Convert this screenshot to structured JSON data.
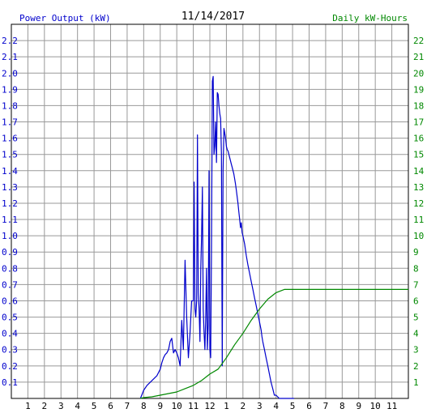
{
  "chart_data": {
    "type": "line",
    "title": "11/14/2017",
    "left_axis_label": "Power Output (kW)",
    "right_axis_label": "Daily kW-Hours",
    "x_ticks": [
      "1",
      "2",
      "3",
      "4",
      "5",
      "6",
      "7",
      "8",
      "9",
      "10",
      "11",
      "12",
      "1",
      "2",
      "3",
      "4",
      "5",
      "6",
      "7",
      "8",
      "9",
      "10",
      "11"
    ],
    "left_ticks": [
      "0.1",
      "0.2",
      "0.3",
      "0.4",
      "0.5",
      "0.6",
      "0.7",
      "0.8",
      "0.9",
      "1.0",
      "1.1",
      "1.2",
      "1.3",
      "1.4",
      "1.5",
      "1.6",
      "1.7",
      "1.8",
      "1.9",
      "2.0",
      "2.1",
      "2.2"
    ],
    "right_ticks": [
      "1",
      "2",
      "3",
      "4",
      "5",
      "6",
      "7",
      "8",
      "9",
      "10",
      "11",
      "12",
      "13",
      "14",
      "15",
      "16",
      "17",
      "18",
      "19",
      "20",
      "21",
      "22"
    ],
    "ylim_left": [
      0,
      2.3
    ],
    "ylim_right": [
      0,
      23
    ],
    "xlim_hours": [
      0,
      24
    ],
    "grid": true,
    "colors": {
      "power": "#0000cc",
      "energy": "#008800",
      "left_axis": "#0000cc",
      "right_axis": "#008800",
      "grid": "#999999",
      "title": "#000000"
    },
    "series": [
      {
        "name": "Power Output (kW)",
        "axis": "left",
        "x": [
          7.8,
          8.0,
          8.2,
          8.4,
          8.6,
          8.8,
          9.0,
          9.1,
          9.2,
          9.3,
          9.4,
          9.5,
          9.6,
          9.7,
          9.8,
          9.9,
          10.0,
          10.1,
          10.2,
          10.3,
          10.4,
          10.5,
          10.6,
          10.7,
          10.8,
          10.9,
          11.0,
          11.05,
          11.1,
          11.15,
          11.2,
          11.25,
          11.3,
          11.35,
          11.4,
          11.45,
          11.5,
          11.55,
          11.6,
          11.65,
          11.7,
          11.75,
          11.8,
          11.85,
          11.9,
          11.95,
          12.0,
          12.05,
          12.1,
          12.15,
          12.2,
          12.25,
          12.3,
          12.35,
          12.4,
          12.45,
          12.5,
          12.55,
          12.6,
          12.65,
          12.7,
          12.75,
          12.8,
          12.85,
          12.9,
          12.95,
          13.0,
          13.05,
          13.1,
          13.15,
          13.2,
          13.25,
          13.3,
          13.35,
          13.4,
          13.45,
          13.5,
          13.55,
          13.6,
          13.65,
          13.7,
          13.75,
          13.8,
          13.85,
          13.9,
          13.95,
          14.0,
          14.1,
          14.2,
          14.3,
          14.4,
          14.5,
          14.6,
          14.7,
          14.8,
          14.9,
          15.0,
          15.1,
          15.15,
          15.2,
          15.3,
          15.4,
          15.5,
          15.6,
          15.7,
          15.8,
          15.9,
          16.0,
          16.1,
          16.2,
          16.3,
          16.4,
          16.5,
          16.6,
          16.7,
          16.8,
          16.9,
          17.0,
          17.1
        ],
        "y": [
          0.0,
          0.05,
          0.08,
          0.1,
          0.12,
          0.14,
          0.18,
          0.22,
          0.25,
          0.27,
          0.28,
          0.3,
          0.35,
          0.37,
          0.28,
          0.3,
          0.28,
          0.25,
          0.2,
          0.48,
          0.3,
          0.85,
          0.5,
          0.25,
          0.4,
          0.6,
          0.6,
          1.33,
          0.55,
          0.5,
          0.6,
          1.62,
          0.65,
          0.55,
          0.35,
          0.8,
          1.0,
          1.3,
          0.55,
          0.4,
          0.3,
          0.5,
          0.8,
          0.3,
          0.45,
          1.4,
          0.3,
          0.25,
          0.9,
          1.95,
          1.98,
          1.5,
          1.55,
          1.7,
          1.45,
          1.88,
          1.87,
          1.8,
          1.75,
          1.72,
          1.5,
          0.2,
          1.4,
          1.66,
          1.63,
          1.6,
          1.55,
          1.53,
          1.52,
          1.5,
          1.48,
          1.46,
          1.44,
          1.42,
          1.4,
          1.38,
          1.35,
          1.32,
          1.28,
          1.24,
          1.2,
          1.15,
          1.1,
          1.05,
          1.08,
          1.02,
          1.0,
          0.95,
          0.88,
          0.82,
          0.77,
          0.72,
          0.67,
          0.62,
          0.57,
          0.52,
          0.47,
          0.42,
          0.38,
          0.35,
          0.3,
          0.25,
          0.2,
          0.15,
          0.1,
          0.06,
          0.02,
          0.02,
          0.01,
          0.0,
          0.0,
          0.0,
          0.0,
          0.0,
          0.0,
          0.0,
          0.0,
          0.0,
          0.0
        ]
      },
      {
        "name": "Daily kW-Hours",
        "axis": "right",
        "x": [
          7.8,
          8.0,
          8.5,
          9.0,
          9.5,
          10.0,
          10.5,
          11.0,
          11.5,
          12.0,
          12.5,
          13.0,
          13.5,
          14.0,
          14.5,
          15.0,
          15.5,
          16.0,
          16.5,
          17.0,
          24.0
        ],
        "y": [
          0.0,
          0.05,
          0.1,
          0.2,
          0.3,
          0.4,
          0.6,
          0.8,
          1.1,
          1.5,
          1.8,
          2.5,
          3.3,
          4.0,
          4.8,
          5.5,
          6.1,
          6.5,
          6.7,
          6.7,
          6.7
        ]
      }
    ]
  }
}
